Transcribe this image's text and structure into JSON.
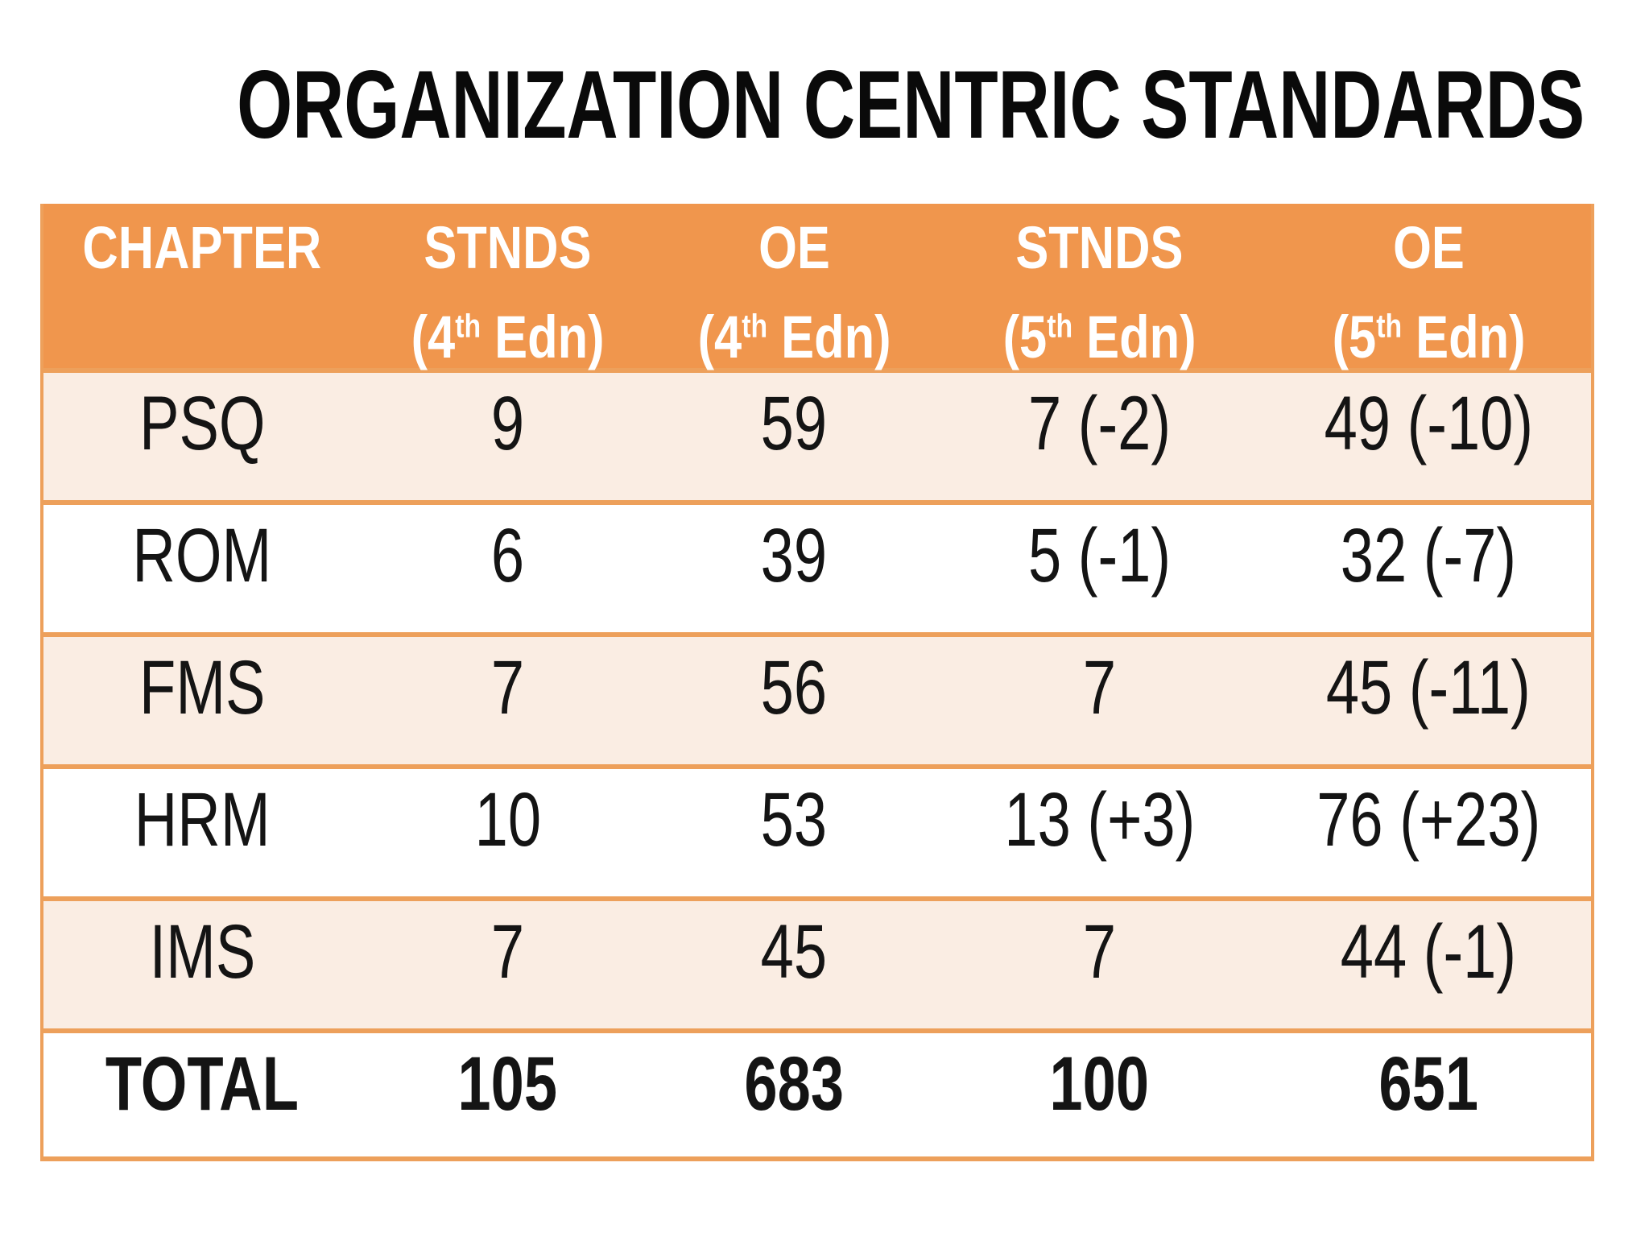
{
  "title": "ORGANIZATION CENTRIC STANDARDS",
  "colors": {
    "header_orange": "#F0964D",
    "border_orange": "#EDA05B",
    "row_pink": "#FAEDE3",
    "row_white": "#FFFFFF",
    "header_text": "#FFFFFF",
    "cell_text": "#141414",
    "title_color": "#0A0A0A",
    "page_bg": "#FFFFFF"
  },
  "table": {
    "columns": [
      {
        "label": "CHAPTER",
        "ed_pre": "",
        "ed_sup": "",
        "ed_post": ""
      },
      {
        "label": "STNDS",
        "ed_pre": "(4",
        "ed_sup": "th",
        "ed_post": " Edn)"
      },
      {
        "label": "OE",
        "ed_pre": "(4",
        "ed_sup": "th",
        "ed_post": " Edn)"
      },
      {
        "label": "STNDS",
        "ed_pre": "(5",
        "ed_sup": "th",
        "ed_post": " Edn)"
      },
      {
        "label": "OE",
        "ed_pre": "(5",
        "ed_sup": "th",
        "ed_post": " Edn)"
      }
    ],
    "rows": [
      {
        "cells": [
          "PSQ",
          "9",
          "59",
          "7 (-2)",
          "49 (-10)"
        ]
      },
      {
        "cells": [
          "ROM",
          "6",
          "39",
          "5 (-1)",
          "32 (-7)"
        ]
      },
      {
        "cells": [
          "FMS",
          "7",
          "56",
          "7",
          "45 (-11)"
        ]
      },
      {
        "cells": [
          "HRM",
          "10",
          "53",
          "13 (+3)",
          "76 (+23)"
        ]
      },
      {
        "cells": [
          "IMS",
          "7",
          "45",
          "7",
          "44 (-1)"
        ]
      },
      {
        "cells": [
          "TOTAL",
          "105",
          "683",
          "100",
          "651"
        ]
      }
    ]
  },
  "chart_data": {
    "type": "table",
    "title": "ORGANIZATION CENTRIC STANDARDS",
    "columns": [
      "CHAPTER",
      "STNDS (4th Edn)",
      "OE (4th Edn)",
      "STNDS (5th Edn)",
      "OE (5th Edn)"
    ],
    "rows": [
      [
        "PSQ",
        "9",
        "59",
        "7 (-2)",
        "49 (-10)"
      ],
      [
        "ROM",
        "6",
        "39",
        "5 (-1)",
        "32 (-7)"
      ],
      [
        "FMS",
        "7",
        "56",
        "7",
        "45 (-11)"
      ],
      [
        "HRM",
        "10",
        "53",
        "13 (+3)",
        "76 (+23)"
      ],
      [
        "IMS",
        "7",
        "45",
        "7",
        "44 (-1)"
      ],
      [
        "TOTAL",
        "105",
        "683",
        "100",
        "651"
      ]
    ]
  }
}
